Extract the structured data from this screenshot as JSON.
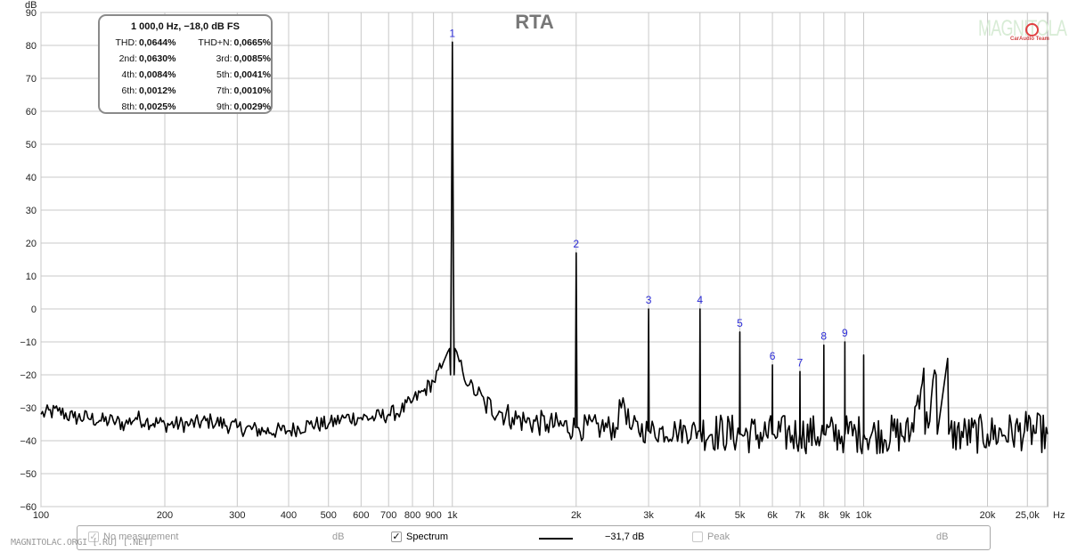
{
  "chart_data": {
    "type": "line",
    "title": "RTA",
    "ylabel": "dB",
    "xunit": "Hz",
    "xscale": "log",
    "xlim": [
      100,
      28000
    ],
    "ylim": [
      -60,
      90
    ],
    "grid": true,
    "y_ticks": [
      90,
      80,
      70,
      60,
      50,
      40,
      30,
      20,
      10,
      0,
      -10,
      -20,
      -30,
      -40,
      -50,
      -60
    ],
    "y_tick_labels": [
      "90",
      "80",
      "70",
      "60",
      "50",
      "40",
      "30",
      "20",
      "10",
      "0",
      "−10",
      "−20",
      "−30",
      "−40",
      "−50",
      "−60"
    ],
    "x_ticks": [
      {
        "f": 100,
        "label": "100"
      },
      {
        "f": 200,
        "label": "200"
      },
      {
        "f": 300,
        "label": "300"
      },
      {
        "f": 400,
        "label": "400"
      },
      {
        "f": 500,
        "label": "500"
      },
      {
        "f": 600,
        "label": "600"
      },
      {
        "f": 700,
        "label": "700"
      },
      {
        "f": 800,
        "label": "800"
      },
      {
        "f": 900,
        "label": "900"
      },
      {
        "f": 1000,
        "label": "1k"
      },
      {
        "f": 2000,
        "label": "2k"
      },
      {
        "f": 3000,
        "label": "3k"
      },
      {
        "f": 4000,
        "label": "4k"
      },
      {
        "f": 5000,
        "label": "5k"
      },
      {
        "f": 6000,
        "label": "6k"
      },
      {
        "f": 7000,
        "label": "7k"
      },
      {
        "f": 8000,
        "label": "8k"
      },
      {
        "f": 9000,
        "label": "9k"
      },
      {
        "f": 10000,
        "label": "10k"
      },
      {
        "f": 20000,
        "label": "20k"
      },
      {
        "f": 25000,
        "label": "25,0k"
      }
    ],
    "x_unit_label": "Hz",
    "series": [
      {
        "name": "Spectrum",
        "color": "#000000",
        "points": [
          [
            100,
            -32
          ],
          [
            110,
            -31
          ],
          [
            120,
            -33
          ],
          [
            130,
            -33
          ],
          [
            140,
            -34
          ],
          [
            150,
            -34
          ],
          [
            160,
            -35
          ],
          [
            170,
            -33
          ],
          [
            180,
            -34
          ],
          [
            200,
            -35
          ],
          [
            230,
            -35
          ],
          [
            260,
            -34
          ],
          [
            300,
            -36
          ],
          [
            350,
            -37
          ],
          [
            400,
            -37
          ],
          [
            450,
            -35
          ],
          [
            500,
            -35
          ],
          [
            550,
            -33
          ],
          [
            600,
            -33
          ],
          [
            650,
            -33
          ],
          [
            700,
            -32
          ],
          [
            750,
            -31
          ],
          [
            800,
            -28
          ],
          [
            850,
            -25
          ],
          [
            900,
            -22
          ],
          [
            940,
            -18
          ],
          [
            960,
            -15
          ],
          [
            975,
            -13
          ],
          [
            985,
            -12
          ],
          [
            990,
            -20
          ],
          [
            995,
            25
          ],
          [
            1000,
            81
          ],
          [
            1005,
            25
          ],
          [
            1010,
            -20
          ],
          [
            1015,
            -12
          ],
          [
            1025,
            -13
          ],
          [
            1040,
            -16
          ],
          [
            1060,
            -19
          ],
          [
            1100,
            -23
          ],
          [
            1150,
            -26
          ],
          [
            1200,
            -29
          ],
          [
            1300,
            -31
          ],
          [
            1400,
            -33
          ],
          [
            1500,
            -34
          ],
          [
            1700,
            -35
          ],
          [
            1990,
            -36
          ],
          [
            2000,
            17
          ],
          [
            2010,
            -36
          ],
          [
            2300,
            -36
          ],
          [
            2500,
            -36
          ],
          [
            2600,
            -27
          ],
          [
            2700,
            -36
          ],
          [
            2990,
            -37
          ],
          [
            3000,
            0
          ],
          [
            3010,
            -37
          ],
          [
            3500,
            -37
          ],
          [
            3990,
            -37
          ],
          [
            4000,
            0
          ],
          [
            4010,
            -37
          ],
          [
            4990,
            -38
          ],
          [
            5000,
            -7
          ],
          [
            5010,
            -38
          ],
          [
            5990,
            -38
          ],
          [
            6000,
            -17
          ],
          [
            6010,
            -38
          ],
          [
            6990,
            -38
          ],
          [
            7000,
            -19
          ],
          [
            7010,
            -38
          ],
          [
            7990,
            -38
          ],
          [
            8000,
            -11
          ],
          [
            8010,
            -38
          ],
          [
            8990,
            -38
          ],
          [
            9000,
            -10
          ],
          [
            9010,
            -38
          ],
          [
            9990,
            -38
          ],
          [
            10000,
            -14
          ],
          [
            10010,
            -38
          ],
          [
            13000,
            -38
          ],
          [
            14000,
            -18
          ],
          [
            14100,
            -38
          ],
          [
            15000,
            -20
          ],
          [
            15100,
            -38
          ],
          [
            16000,
            -15
          ],
          [
            16100,
            -38
          ],
          [
            20000,
            -38
          ],
          [
            25000,
            -37
          ],
          [
            28000,
            -38
          ]
        ]
      }
    ],
    "harmonics": [
      {
        "label": "1",
        "f": 1000,
        "db": 81
      },
      {
        "label": "2",
        "f": 2000,
        "db": 17
      },
      {
        "label": "3",
        "f": 3000,
        "db": 0
      },
      {
        "label": "4",
        "f": 4000,
        "db": 0
      },
      {
        "label": "5",
        "f": 5000,
        "db": -7
      },
      {
        "label": "6",
        "f": 6000,
        "db": -17
      },
      {
        "label": "7",
        "f": 7000,
        "db": -19
      },
      {
        "label": "8",
        "f": 8000,
        "db": -11
      },
      {
        "label": "9",
        "f": 9000,
        "db": -10
      }
    ]
  },
  "infobox": {
    "header": "1 000,0 Hz, −18,0 dB FS",
    "rows": [
      {
        "l1": "THD:",
        "v1": "0,0644%",
        "l2": "THD+N:",
        "v2": "0,0665%"
      },
      {
        "l1": "2nd:",
        "v1": "0,0630%",
        "l2": "3rd:",
        "v2": "0,0085%"
      },
      {
        "l1": "4th:",
        "v1": "0,0084%",
        "l2": "5th:",
        "v2": "0,0041%"
      },
      {
        "l1": "6th:",
        "v1": "0,0012%",
        "l2": "7th:",
        "v2": "0,0010%"
      },
      {
        "l1": "8th:",
        "v1": "0,0025%",
        "l2": "9th:",
        "v2": "0,0029%"
      }
    ]
  },
  "logo": {
    "text": "MAGNITOLA",
    "sub": "CarAudio Team"
  },
  "legend": {
    "no_measurement_label": "No measurement",
    "no_measurement_checked": true,
    "unit1": "dB",
    "spectrum_label": "Spectrum",
    "spectrum_checked": true,
    "spectrum_value": "−31,7 dB",
    "peak_label": "Peak",
    "peak_checked": false,
    "unit2": "dB"
  },
  "watermark": "MAGNITOLAC.ORGI [.RU] [.NET]",
  "colors": {
    "trace": "#000000",
    "grid": "#c8c8c8",
    "harmonic_label": "#2b2bd6",
    "title": "#777777"
  }
}
